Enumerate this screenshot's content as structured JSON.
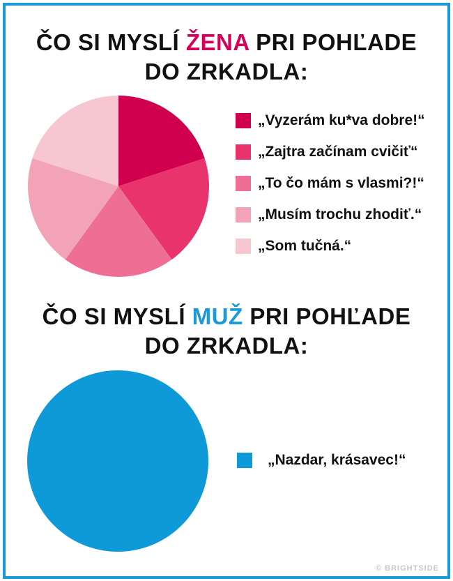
{
  "chart_data": [
    {
      "type": "pie",
      "title_parts": {
        "before": "ČO SI MYSLÍ ",
        "highlight": "ŽENA",
        "after": " PRI POHĽADE",
        "line2": "DO ZRKADLA:"
      },
      "highlight_color": "#d4005a",
      "slices": [
        {
          "label": "„Vyzerám ku*va dobre!“",
          "value": 20,
          "color": "#d0004f"
        },
        {
          "label": "„Zajtra začínam cvičiť“",
          "value": 20,
          "color": "#e8336d"
        },
        {
          "label": "„To čo mám s vlasmi?!“",
          "value": 20,
          "color": "#ef6e93"
        },
        {
          "label": "„Musím trochu zhodiť.“",
          "value": 20,
          "color": "#f3a3b7"
        },
        {
          "label": "„Som tučná.“",
          "value": 20,
          "color": "#f6c7d1"
        }
      ]
    },
    {
      "type": "pie",
      "title_parts": {
        "before": "ČO SI MYSLÍ ",
        "highlight": "MUŽ",
        "after": " PRI POHĽADE",
        "line2": "DO ZRKADLA:"
      },
      "highlight_color": "#1a9ad6",
      "slices": [
        {
          "label": "„Nazdar, krásavec!“",
          "value": 100,
          "color": "#0e9ad9"
        }
      ]
    }
  ],
  "watermark": "© BRIGHTSIDE",
  "frame_color": "#1a9ad6"
}
